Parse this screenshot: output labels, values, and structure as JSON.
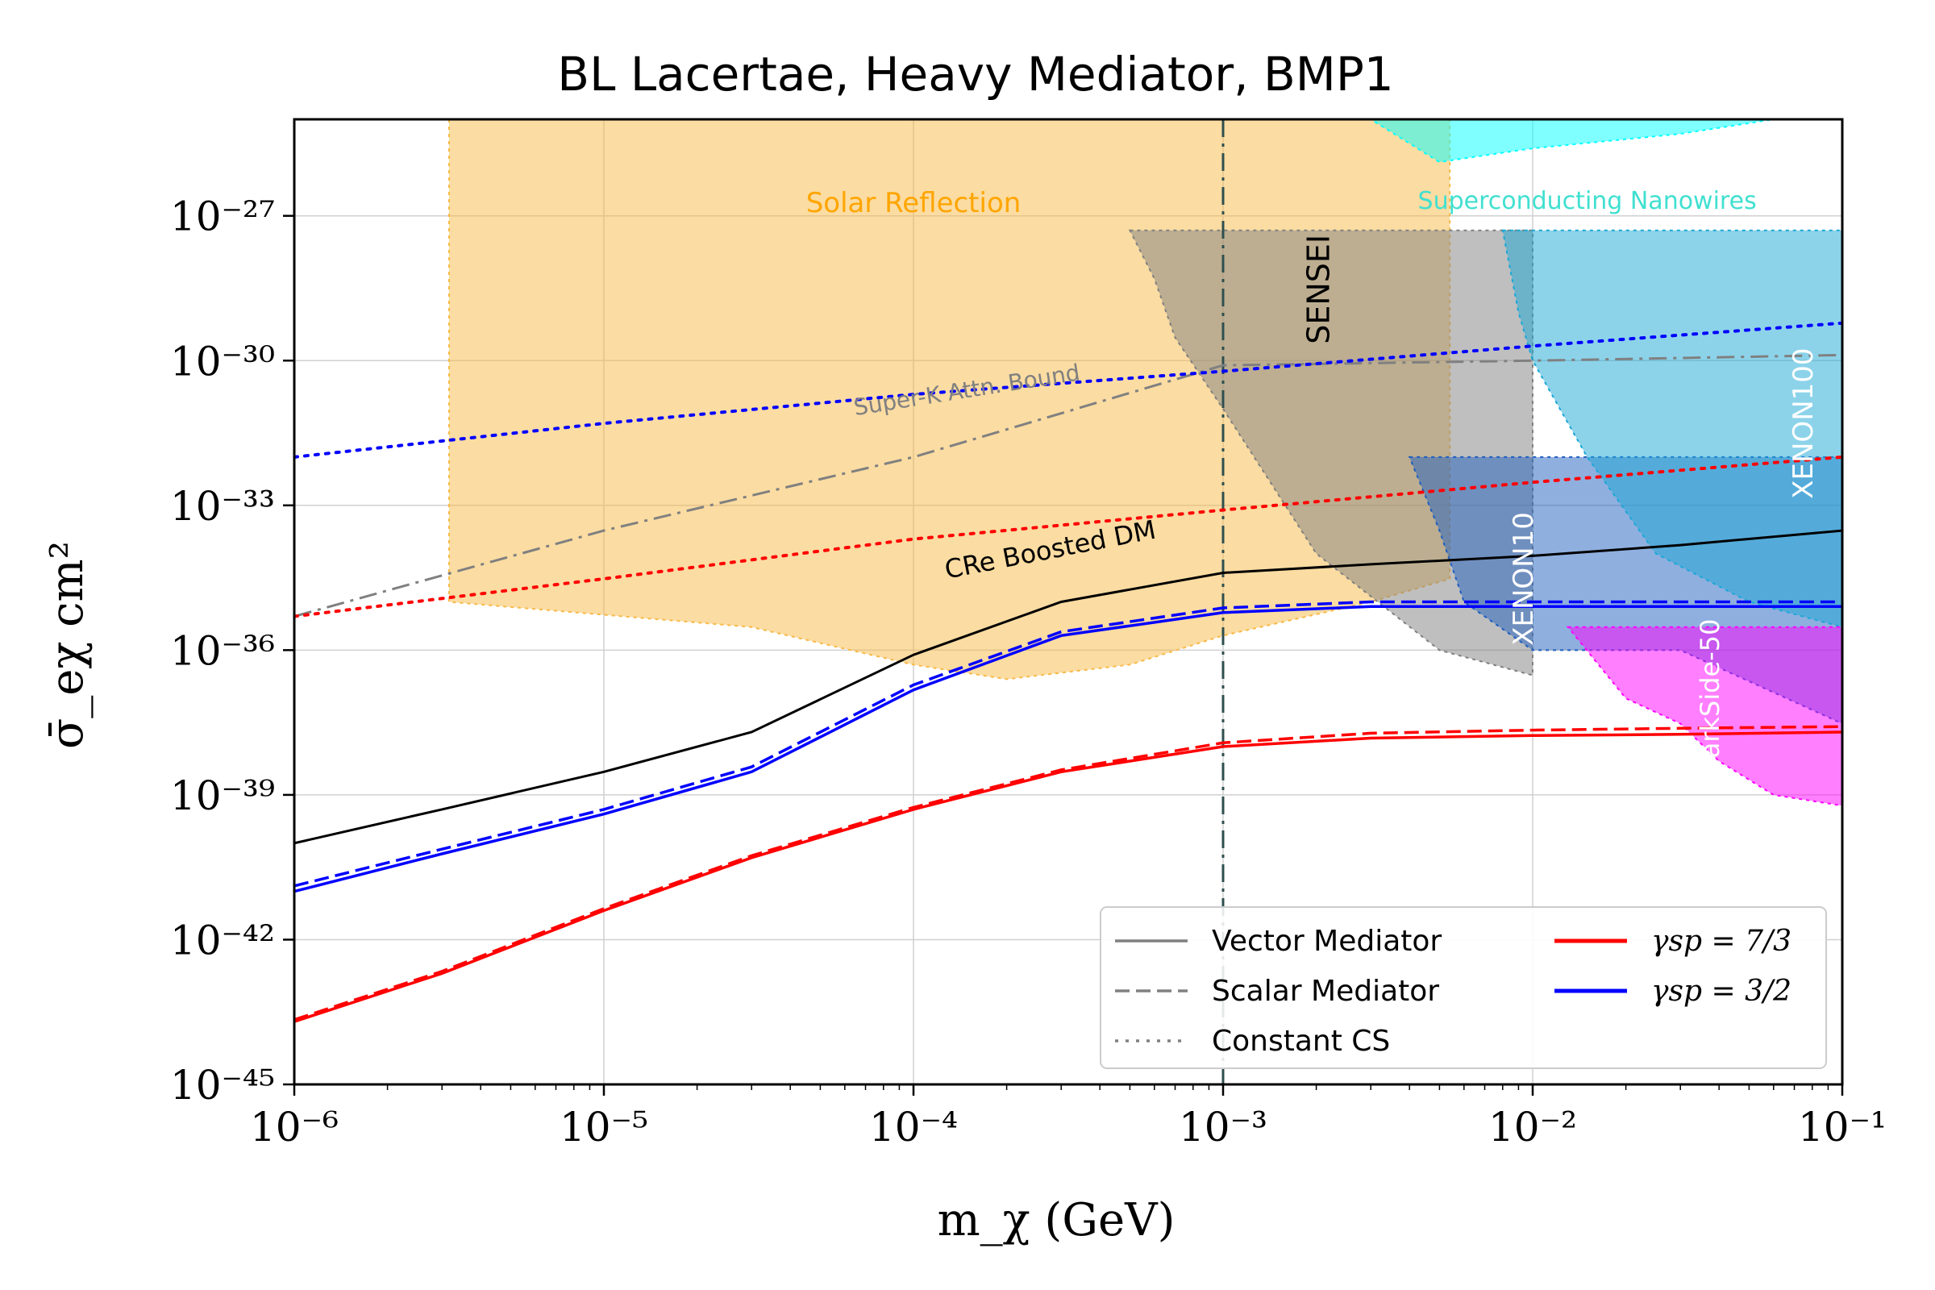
{
  "chart_data": {
    "type": "line",
    "title": "BL Lacertae, Heavy Mediator, BMP1",
    "xlabel": "m_χ (GeV)",
    "ylabel": "σ̄_eχ  cm²",
    "x_scale": "log",
    "y_scale": "log",
    "xlim": [
      1e-06,
      0.1
    ],
    "ylim": [
      1e-45,
      1e-25
    ],
    "grid": true,
    "x_tick_labels": [
      "10⁻⁶",
      "10⁻⁵",
      "10⁻⁴",
      "10⁻³",
      "10⁻²",
      "10⁻¹"
    ],
    "y_tick_labels": [
      "10⁻⁴⁵",
      "10⁻⁴²",
      "10⁻³⁹",
      "10⁻³⁶",
      "10⁻³³",
      "10⁻³⁰",
      "10⁻²⁷"
    ],
    "reference_line": {
      "type": "vertical",
      "x": 0.001,
      "style": "dash-dot",
      "color": "#2f4f4f"
    },
    "exclusion_regions": [
      {
        "label": "Solar Reflection",
        "color": "#f8b946",
        "label_color": "#ffa500",
        "points": [
          [
            3.16e-06,
            1e-25
          ],
          [
            3.16e-06,
            1e-35
          ],
          [
            3e-05,
            3e-36
          ],
          [
            0.0001,
            5e-37
          ],
          [
            0.0002,
            2.5e-37
          ],
          [
            0.0005,
            5e-37
          ],
          [
            0.001,
            2e-36
          ],
          [
            0.003,
            1e-35
          ],
          [
            0.0054,
            3e-35
          ],
          [
            0.0054,
            1e-25
          ]
        ]
      },
      {
        "label": "Superconducting Nanowires",
        "color": "#00ffff",
        "label_color": "#40e0d0",
        "points": [
          [
            0.001,
            1e-25
          ],
          [
            0.0015,
            1e-25
          ],
          [
            0.003,
            1e-25
          ],
          [
            0.005,
            1.3e-26
          ],
          [
            0.01,
            2.5e-26
          ],
          [
            0.03,
            5e-26
          ],
          [
            0.06,
            1e-25
          ]
        ]
      },
      {
        "label": "SENSEI",
        "color": "#808080",
        "label_color": "#000000",
        "points": [
          [
            0.0005,
            5e-28
          ],
          [
            0.01,
            5e-28
          ],
          [
            0.01,
            3e-37
          ],
          [
            0.005,
            1e-36
          ],
          [
            0.002,
            1e-34
          ],
          [
            0.001,
            1e-31
          ],
          [
            0.0007,
            3e-30
          ],
          [
            0.0006,
            5e-29
          ]
        ]
      },
      {
        "label": "XENON10",
        "color": "#1f5fbf",
        "label_color": "#ffffff",
        "points": [
          [
            0.004,
            1e-32
          ],
          [
            0.1,
            1e-32
          ],
          [
            0.1,
            3e-38
          ],
          [
            0.03,
            1e-36
          ],
          [
            0.01,
            1e-36
          ],
          [
            0.006,
            1e-35
          ],
          [
            0.005,
            3e-34
          ]
        ]
      },
      {
        "label": "XENON100",
        "color": "#1aa7d6",
        "label_color": "#ffffff",
        "points": [
          [
            0.008,
            5e-28
          ],
          [
            0.1,
            5e-28
          ],
          [
            0.1,
            3e-36
          ],
          [
            0.05,
            1e-35
          ],
          [
            0.025,
            1e-34
          ],
          [
            0.015,
            1e-32
          ],
          [
            0.01,
            1e-30
          ],
          [
            0.009,
            1e-29
          ]
        ]
      },
      {
        "label": "DarkSide-50",
        "color": "#ff00ff",
        "label_color": "#ffffff",
        "points": [
          [
            0.013,
            3e-36
          ],
          [
            0.1,
            3e-36
          ],
          [
            0.1,
            6e-40
          ],
          [
            0.06,
            1e-39
          ],
          [
            0.04,
            5e-39
          ],
          [
            0.03,
            3e-38
          ],
          [
            0.02,
            1e-37
          ]
        ]
      }
    ],
    "bounds": [
      {
        "label": "Super-K Attn. Bound",
        "color": "#808080",
        "style": "dash-dot",
        "x": [
          1e-06,
          1e-05,
          0.0001,
          0.001,
          0.01,
          0.1
        ],
        "y": [
          5e-36,
          3e-34,
          1e-32,
          8e-31,
          1e-30,
          1.3e-30
        ]
      },
      {
        "label": "CRe Boosted DM",
        "color": "#000000",
        "style": "solid",
        "x": [
          1e-06,
          3e-06,
          1e-05,
          3e-05,
          0.0001,
          0.0003,
          0.001,
          0.003,
          0.01,
          0.03,
          0.1
        ],
        "y": [
          1e-40,
          5e-40,
          3e-39,
          2e-38,
          8e-37,
          1e-35,
          4e-35,
          6e-35,
          9e-35,
          1.5e-34,
          3e-34
        ]
      }
    ],
    "series": [
      {
        "name": "Vector Mediator, γsp = 7/3",
        "color": "#ff0000",
        "style": "solid",
        "x": [
          1e-06,
          3e-06,
          1e-05,
          3e-05,
          0.0001,
          0.0003,
          0.001,
          0.003,
          0.01,
          0.03,
          0.1
        ],
        "y": [
          2e-44,
          2e-43,
          4e-42,
          5e-41,
          5e-40,
          3e-39,
          1e-38,
          1.5e-38,
          1.7e-38,
          1.8e-38,
          2e-38
        ]
      },
      {
        "name": "Scalar Mediator, γsp = 7/3",
        "color": "#ff0000",
        "style": "dashed",
        "x": [
          1e-06,
          3e-06,
          1e-05,
          3e-05,
          0.0001,
          0.0003,
          0.001,
          0.003,
          0.01,
          0.03,
          0.1
        ],
        "y": [
          2.2e-44,
          2.2e-43,
          4.4e-42,
          5.5e-41,
          5.5e-40,
          3.3e-39,
          1.2e-38,
          1.9e-38,
          2.2e-38,
          2.4e-38,
          2.6e-38
        ]
      },
      {
        "name": "Constant CS, γsp = 7/3",
        "color": "#ff0000",
        "style": "dotted",
        "x": [
          1e-06,
          1e-05,
          0.0001,
          0.001,
          0.01,
          0.1
        ],
        "y": [
          5e-36,
          3e-35,
          2e-34,
          8e-34,
          3e-33,
          1e-32
        ]
      },
      {
        "name": "Vector Mediator, γsp = 3/2",
        "color": "#0000ff",
        "style": "solid",
        "x": [
          1e-06,
          3e-06,
          1e-05,
          3e-05,
          0.0001,
          0.0003,
          0.001,
          0.003,
          0.01,
          0.03,
          0.1
        ],
        "y": [
          1e-41,
          6e-41,
          4e-40,
          3e-39,
          1.5e-37,
          2e-36,
          6e-36,
          8e-36,
          8e-36,
          8e-36,
          8e-36
        ]
      },
      {
        "name": "Scalar Mediator, γsp = 3/2",
        "color": "#0000ff",
        "style": "dashed",
        "x": [
          1e-06,
          3e-06,
          1e-05,
          3e-05,
          0.0001,
          0.0003,
          0.001,
          0.003,
          0.01,
          0.03,
          0.1
        ],
        "y": [
          1.3e-41,
          7.5e-41,
          5e-40,
          3.8e-39,
          1.9e-37,
          2.4e-36,
          7.5e-36,
          1e-35,
          1e-35,
          1e-35,
          1e-35
        ]
      },
      {
        "name": "Constant CS, γsp = 3/2",
        "color": "#0000ff",
        "style": "dotted",
        "x": [
          1e-06,
          1e-05,
          0.0001,
          0.001,
          0.01,
          0.1
        ],
        "y": [
          1e-32,
          5e-32,
          2e-31,
          6e-31,
          2e-30,
          6e-30
        ]
      }
    ],
    "legend": {
      "position": "lower right",
      "entries": [
        {
          "label": "Vector Mediator",
          "color": "#808080",
          "style": "solid"
        },
        {
          "label": "Scalar Mediator",
          "color": "#808080",
          "style": "dashed"
        },
        {
          "label": "Constant CS",
          "color": "#808080",
          "style": "dotted"
        },
        {
          "label": "γsp = 7/3",
          "color": "#ff0000",
          "style": "solid"
        },
        {
          "label": "γsp = 3/2",
          "color": "#0000ff",
          "style": "solid"
        }
      ]
    }
  }
}
